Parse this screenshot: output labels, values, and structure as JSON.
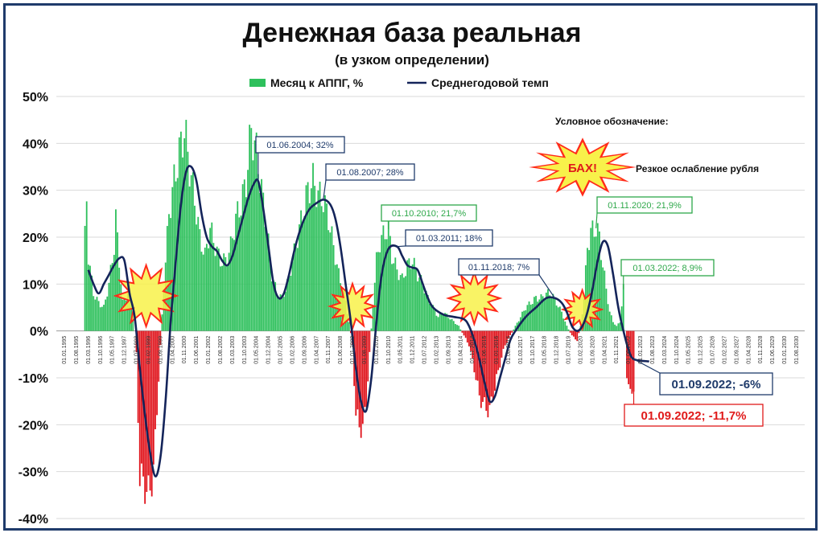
{
  "colors": {
    "positive_bar": "#2ec05c",
    "negative_bar": "#e0141c",
    "line": "#14245a",
    "green_annotation": "#2ea84a",
    "navy_annotation": "#1f3b6b",
    "red_annotation": "#e01a1a",
    "burst_fill": "#f8f14a",
    "burst_stroke": "#ff2a1a"
  },
  "chart_data": {
    "type": "bar",
    "title": "Денежная база реальная",
    "subtitle": "(в узком определении)",
    "legend": {
      "placement": "top-center",
      "bar_series": "Месяц к АППГ, %",
      "line_series": "Среднегодовой темп"
    },
    "y_axis": {
      "ylim": [
        -40,
        50
      ],
      "ticks": [
        "50%",
        "40%",
        "30%",
        "20%",
        "10%",
        "0%",
        "-10%",
        "-20%",
        "-30%",
        "-40%"
      ],
      "grid": true
    },
    "x_axis": {
      "tick_labels": [
        "01.01.1995",
        "01.08.1995",
        "01.03.1996",
        "01.10.1996",
        "01.05.1997",
        "01.12.1997",
        "01.07.1998",
        "01.02.1999",
        "01.09.1999",
        "01.04.2000",
        "01.11.2000",
        "01.06.2001",
        "01.01.2002",
        "01.08.2002",
        "01.03.2003",
        "01.10.2003",
        "01.05.2004",
        "01.12.2004",
        "01.07.2005",
        "01.02.2006",
        "01.09.2006",
        "01.04.2007",
        "01.11.2007",
        "01.06.2008",
        "01.01.2009",
        "01.08.2009",
        "01.03.2010",
        "01.10.2010",
        "01.05.2011",
        "01.12.2011",
        "01.07.2012",
        "01.02.2013",
        "01.09.2013",
        "01.04.2014",
        "01.11.2014",
        "01.06.2015",
        "01.01.2016",
        "01.08.2016",
        "01.03.2017",
        "01.10.2017",
        "01.05.2018",
        "01.12.2018",
        "01.07.2019",
        "01.02.2020",
        "01.09.2020",
        "01.04.2021",
        "01.11.2021",
        "01.06.2022",
        "01.01.2023",
        "01.08.2023",
        "01.03.2024",
        "01.10.2024",
        "01.05.2025",
        "01.12.2025",
        "01.07.2026",
        "01.02.2027",
        "01.09.2027",
        "01.04.2028",
        "01.11.2028",
        "01.06.2029",
        "01.01.2030",
        "01.08.2030"
      ]
    },
    "bar_series": {
      "name": "Месяц к АППГ, %",
      "start": "01.01.1995",
      "frequency": "monthly",
      "points": [
        [
          "1995-12",
          0
        ],
        [
          "1996-01",
          20
        ],
        [
          "1996-02",
          28
        ],
        [
          "1996-03",
          16
        ],
        [
          "1996-06",
          8
        ],
        [
          "1996-09",
          6
        ],
        [
          "1996-12",
          5
        ],
        [
          "1997-03",
          10
        ],
        [
          "1997-06",
          18
        ],
        [
          "1997-07",
          24
        ],
        [
          "1997-09",
          15
        ],
        [
          "1997-11",
          6
        ],
        [
          "1998-02",
          8
        ],
        [
          "1998-05",
          5
        ],
        [
          "1998-07",
          -5
        ],
        [
          "1998-09",
          -31
        ],
        [
          "1998-12",
          -33
        ],
        [
          "1999-02",
          -35
        ],
        [
          "1999-05",
          -30
        ],
        [
          "1999-08",
          -10
        ],
        [
          "1999-11",
          10
        ],
        [
          "2000-02",
          25
        ],
        [
          "2000-05",
          32
        ],
        [
          "2000-08",
          38
        ],
        [
          "2000-11",
          43
        ],
        [
          "2001-02",
          35
        ],
        [
          "2001-05",
          28
        ],
        [
          "2001-08",
          20
        ],
        [
          "2001-11",
          16
        ],
        [
          "2002-02",
          22
        ],
        [
          "2002-05",
          18
        ],
        [
          "2002-08",
          15
        ],
        [
          "2002-11",
          15
        ],
        [
          "2003-02",
          18
        ],
        [
          "2003-05",
          24
        ],
        [
          "2003-08",
          27
        ],
        [
          "2003-11",
          32
        ],
        [
          "2004-02",
          43
        ],
        [
          "2004-05",
          38
        ],
        [
          "2004-08",
          30
        ],
        [
          "2004-11",
          22
        ],
        [
          "2005-02",
          12
        ],
        [
          "2005-05",
          8
        ],
        [
          "2005-08",
          7
        ],
        [
          "2005-11",
          10
        ],
        [
          "2006-02",
          15
        ],
        [
          "2006-05",
          20
        ],
        [
          "2006-08",
          25
        ],
        [
          "2006-11",
          30
        ],
        [
          "2007-02",
          32
        ],
        [
          "2007-05",
          29
        ],
        [
          "2007-08",
          28
        ],
        [
          "2007-11",
          24
        ],
        [
          "2008-02",
          18
        ],
        [
          "2008-05",
          12
        ],
        [
          "2008-08",
          8
        ],
        [
          "2008-11",
          2
        ],
        [
          "2009-01",
          -3
        ],
        [
          "2009-03",
          -18
        ],
        [
          "2009-05",
          -20
        ],
        [
          "2009-07",
          -21
        ],
        [
          "2009-09",
          -15
        ],
        [
          "2009-11",
          -5
        ],
        [
          "2010-01",
          6
        ],
        [
          "2010-03",
          15
        ],
        [
          "2010-05",
          19
        ],
        [
          "2010-08",
          21
        ],
        [
          "2010-10",
          22
        ],
        [
          "2010-12",
          16
        ],
        [
          "2011-03",
          13
        ],
        [
          "2011-06",
          11
        ],
        [
          "2011-09",
          14
        ],
        [
          "2011-12",
          15
        ],
        [
          "2012-03",
          12
        ],
        [
          "2012-06",
          10
        ],
        [
          "2012-09",
          7
        ],
        [
          "2012-12",
          5
        ],
        [
          "2013-03",
          3
        ],
        [
          "2013-06",
          4
        ],
        [
          "2013-09",
          3
        ],
        [
          "2013-12",
          2
        ],
        [
          "2014-03",
          1
        ],
        [
          "2014-06",
          -1
        ],
        [
          "2014-09",
          -3
        ],
        [
          "2014-12",
          -8
        ],
        [
          "2015-03",
          -14
        ],
        [
          "2015-06",
          -16
        ],
        [
          "2015-09",
          -17
        ],
        [
          "2015-12",
          -12
        ],
        [
          "2016-03",
          -7
        ],
        [
          "2016-06",
          -3
        ],
        [
          "2016-09",
          -1
        ],
        [
          "2016-12",
          1
        ],
        [
          "2017-03",
          3
        ],
        [
          "2017-06",
          5
        ],
        [
          "2017-09",
          6
        ],
        [
          "2017-12",
          7
        ],
        [
          "2018-03",
          7
        ],
        [
          "2018-06",
          8
        ],
        [
          "2018-09",
          8
        ],
        [
          "2018-12",
          6
        ],
        [
          "2019-03",
          4
        ],
        [
          "2019-06",
          1
        ],
        [
          "2019-09",
          -1
        ],
        [
          "2019-12",
          -2
        ],
        [
          "2020-02",
          1
        ],
        [
          "2020-04",
          7
        ],
        [
          "2020-06",
          18
        ],
        [
          "2020-08",
          21
        ],
        [
          "2020-11",
          22
        ],
        [
          "2021-01",
          20
        ],
        [
          "2021-03",
          14
        ],
        [
          "2021-05",
          9
        ],
        [
          "2021-07",
          4
        ],
        [
          "2021-09",
          2
        ],
        [
          "2021-11",
          1
        ],
        [
          "2022-01",
          2
        ],
        [
          "2022-03",
          9
        ],
        [
          "2022-05",
          -9
        ],
        [
          "2022-07",
          -14
        ],
        [
          "2022-09",
          -11.7
        ],
        [
          "2022-10",
          0
        ]
      ]
    },
    "line_series": {
      "name": "Среднегодовой темп",
      "points": [
        [
          "1996-03",
          13
        ],
        [
          "1996-06",
          10
        ],
        [
          "1996-09",
          8
        ],
        [
          "1996-12",
          10
        ],
        [
          "1997-03",
          12
        ],
        [
          "1997-06",
          14
        ],
        [
          "1997-09",
          15.5
        ],
        [
          "1997-12",
          15
        ],
        [
          "1998-03",
          8
        ],
        [
          "1998-06",
          3
        ],
        [
          "1998-09",
          -8
        ],
        [
          "1998-12",
          -18
        ],
        [
          "1999-03",
          -26
        ],
        [
          "1999-06",
          -31
        ],
        [
          "1999-09",
          -27
        ],
        [
          "1999-12",
          -15
        ],
        [
          "2000-03",
          2
        ],
        [
          "2000-06",
          15
        ],
        [
          "2000-09",
          27
        ],
        [
          "2000-12",
          34
        ],
        [
          "2001-03",
          35
        ],
        [
          "2001-06",
          32
        ],
        [
          "2001-09",
          25
        ],
        [
          "2001-12",
          20
        ],
        [
          "2002-03",
          18
        ],
        [
          "2002-06",
          17
        ],
        [
          "2002-09",
          15
        ],
        [
          "2002-12",
          14
        ],
        [
          "2003-03",
          16
        ],
        [
          "2003-06",
          20
        ],
        [
          "2003-09",
          24
        ],
        [
          "2003-12",
          28
        ],
        [
          "2004-03",
          31
        ],
        [
          "2004-06",
          32
        ],
        [
          "2004-09",
          26
        ],
        [
          "2004-12",
          18
        ],
        [
          "2005-03",
          10
        ],
        [
          "2005-06",
          7
        ],
        [
          "2005-09",
          8
        ],
        [
          "2005-12",
          12
        ],
        [
          "2006-03",
          17
        ],
        [
          "2006-06",
          21
        ],
        [
          "2006-09",
          24
        ],
        [
          "2006-12",
          26
        ],
        [
          "2007-03",
          27
        ],
        [
          "2007-08",
          28
        ],
        [
          "2007-12",
          27
        ],
        [
          "2008-03",
          24
        ],
        [
          "2008-06",
          18
        ],
        [
          "2008-09",
          10
        ],
        [
          "2008-12",
          2
        ],
        [
          "2009-03",
          -8
        ],
        [
          "2009-06",
          -15
        ],
        [
          "2009-09",
          -17
        ],
        [
          "2009-12",
          -10
        ],
        [
          "2010-03",
          2
        ],
        [
          "2010-06",
          12
        ],
        [
          "2010-10",
          17.5
        ],
        [
          "2011-03",
          18
        ],
        [
          "2011-06",
          16
        ],
        [
          "2011-09",
          14
        ],
        [
          "2011-12",
          13.5
        ],
        [
          "2012-03",
          13
        ],
        [
          "2012-06",
          10
        ],
        [
          "2012-09",
          7
        ],
        [
          "2012-12",
          5
        ],
        [
          "2013-06",
          3.5
        ],
        [
          "2013-12",
          3
        ],
        [
          "2014-06",
          2.5
        ],
        [
          "2014-09",
          1
        ],
        [
          "2014-12",
          -2
        ],
        [
          "2015-03",
          -6
        ],
        [
          "2015-06",
          -11
        ],
        [
          "2015-09",
          -15
        ],
        [
          "2015-12",
          -14
        ],
        [
          "2016-03",
          -10
        ],
        [
          "2016-06",
          -6
        ],
        [
          "2016-09",
          -2
        ],
        [
          "2016-12",
          0
        ],
        [
          "2017-06",
          3
        ],
        [
          "2017-12",
          5
        ],
        [
          "2018-06",
          7
        ],
        [
          "2018-11",
          7
        ],
        [
          "2019-03",
          6
        ],
        [
          "2019-06",
          4
        ],
        [
          "2019-09",
          1
        ],
        [
          "2019-12",
          0
        ],
        [
          "2020-03",
          1
        ],
        [
          "2020-06",
          4
        ],
        [
          "2020-09",
          9
        ],
        [
          "2020-12",
          15
        ],
        [
          "2021-03",
          19
        ],
        [
          "2021-06",
          18
        ],
        [
          "2021-09",
          12
        ],
        [
          "2021-12",
          5
        ],
        [
          "2022-03",
          0
        ],
        [
          "2022-06",
          -4
        ],
        [
          "2022-09",
          -6
        ],
        [
          "2023-06",
          -6.5
        ]
      ]
    },
    "annotations": [
      {
        "text": "01.06.2004; 32%",
        "color": "navy"
      },
      {
        "text": "01.08.2007; 28%",
        "color": "navy"
      },
      {
        "text": "01.10.2010; 21,7%",
        "color": "green"
      },
      {
        "text": "01.03.2011; 18%",
        "color": "navy"
      },
      {
        "text": "01.11.2018; 7%",
        "color": "navy"
      },
      {
        "text": "01.11.2020; 21,9%",
        "color": "green"
      },
      {
        "text": "01.03.2022; 8,9%",
        "color": "green"
      },
      {
        "text": "01.09.2022; -6%",
        "color": "navy"
      },
      {
        "text": "01.09.2022; -11,7%",
        "color": "red"
      }
    ],
    "bursts": [
      "1998-08",
      "2009-01",
      "2014-12",
      "2020-03"
    ]
  },
  "legend_note": {
    "title": "Условное обозначение:",
    "burst_label": "БАХ!",
    "description": "Резкое ослабление рубля"
  }
}
